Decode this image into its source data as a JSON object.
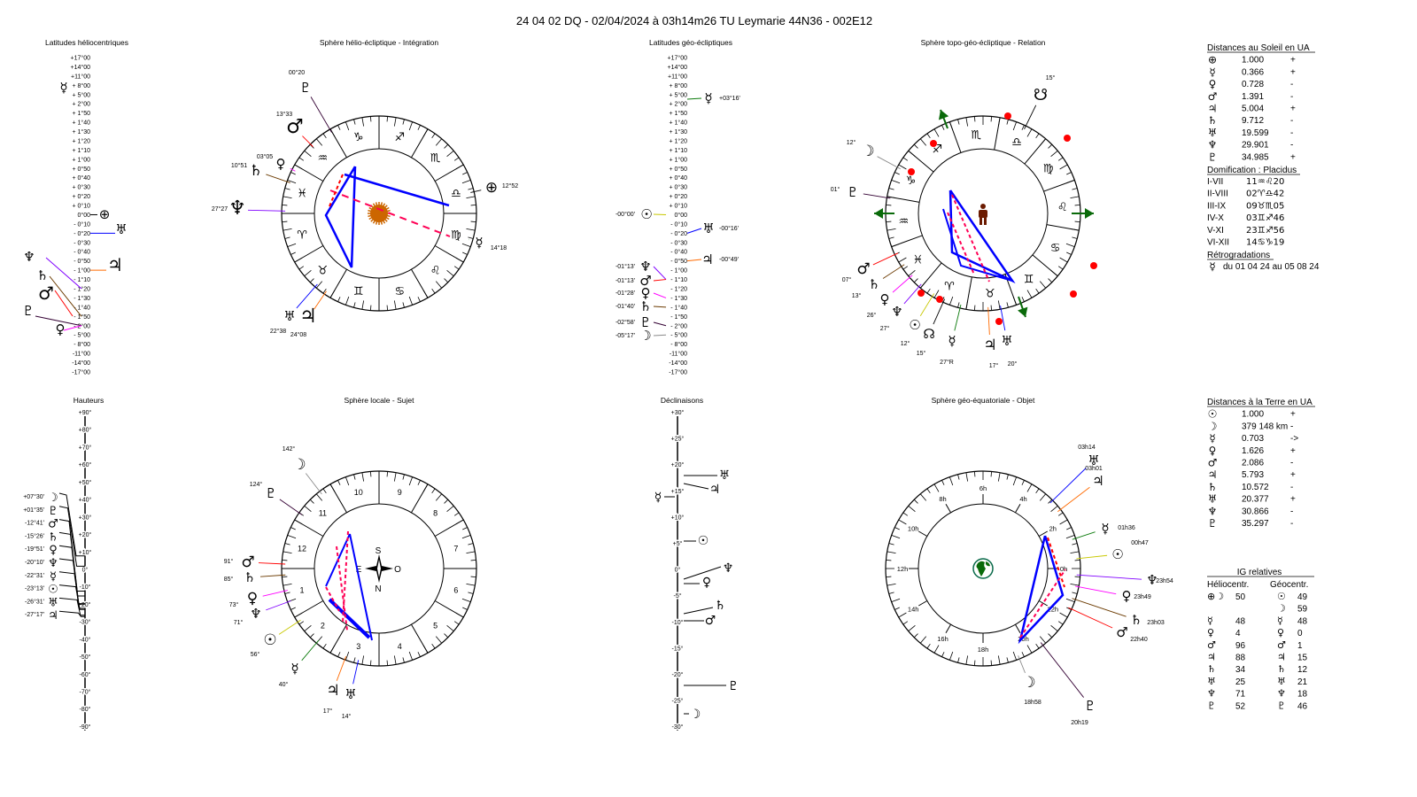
{
  "title": "24 04 02 DQ   -   02/04/2024 à 03h14m26 TU  Leymarie  44N36 - 002E12",
  "planets": {
    "earth": {
      "glyph": "⊕",
      "color": "#000000"
    },
    "sun": {
      "glyph": "☉",
      "color": "#c8c800"
    },
    "moon": {
      "glyph": "☽",
      "color": "#8a8a8a"
    },
    "mercury": {
      "glyph": "☿",
      "color": "#0a7a0a"
    },
    "venus": {
      "glyph": "♀",
      "color": "#ff00ff"
    },
    "mars": {
      "glyph": "♂",
      "color": "#ff0000"
    },
    "jupiter": {
      "glyph": "♃",
      "color": "#ff6a00"
    },
    "saturn": {
      "glyph": "♄",
      "color": "#6b3a00"
    },
    "uranus": {
      "glyph": "♅",
      "color": "#0000ff"
    },
    "neptune": {
      "glyph": "♆",
      "color": "#8000ff"
    },
    "pluto": {
      "glyph": "♇",
      "color": "#330033"
    },
    "north_node": {
      "glyph": "☊",
      "color": "#000000"
    },
    "south_node": {
      "glyph": "☋",
      "color": "#000000"
    }
  },
  "zodiac": [
    {
      "glyph": "♈",
      "color": "#d0105a"
    },
    {
      "glyph": "♉",
      "color": "#808080"
    },
    {
      "glyph": "♊",
      "color": "#0a9a0a"
    },
    {
      "glyph": "♋",
      "color": "#3030ff"
    },
    {
      "glyph": "♌",
      "color": "#d0105a"
    },
    {
      "glyph": "♍",
      "color": "#808080"
    },
    {
      "glyph": "♎",
      "color": "#0a9a0a"
    },
    {
      "glyph": "♏",
      "color": "#3030ff"
    },
    {
      "glyph": "♐",
      "color": "#d0105a"
    },
    {
      "glyph": "♑",
      "color": "#808080"
    },
    {
      "glyph": "♒",
      "color": "#0a9a0a"
    },
    {
      "glyph": "♓",
      "color": "#3030ff"
    }
  ],
  "helio_latitudes": {
    "title": "Latitudes héliocentriques",
    "scale": [
      "+17°00",
      "+14°00",
      "+11°00",
      "+ 8°00",
      "+ 5°00",
      "+ 2°00",
      "+ 1°50",
      "+ 1°40",
      "+ 1°30",
      "+ 1°20",
      "+ 1°10",
      "+ 1°00",
      "+ 0°50",
      "+ 0°40",
      "+ 0°30",
      "+ 0°20",
      "+ 0°10",
      "0°00",
      "- 0°10",
      "- 0°20",
      "- 0°30",
      "- 0°40",
      "- 0°50",
      "- 1°00",
      "- 1°10",
      "- 1°20",
      "- 1°30",
      "- 1°40",
      "- 1°50",
      "- 2°00",
      "- 5°00",
      "- 8°00",
      "-11°00",
      "-14°00",
      "-17°00"
    ],
    "markers": [
      {
        "planet": "mercury"
      },
      {
        "planet": "earth"
      },
      {
        "planet": "uranus"
      },
      {
        "planet": "jupiter"
      },
      {
        "planet": "neptune"
      },
      {
        "planet": "saturn"
      },
      {
        "planet": "mars"
      },
      {
        "planet": "pluto"
      },
      {
        "planet": "venus"
      }
    ]
  },
  "helio_sphere": {
    "title": "Sphère hélio-écliptique - Intégration",
    "positions": [
      {
        "planet": "pluto",
        "label": "00°20"
      },
      {
        "planet": "mars",
        "label": "13°33"
      },
      {
        "planet": "venus",
        "label": "03°05"
      },
      {
        "planet": "saturn",
        "label": "10°51"
      },
      {
        "planet": "neptune",
        "label": "27°27"
      },
      {
        "planet": "earth",
        "label": "12°52"
      },
      {
        "planet": "mercury",
        "label": "14°18"
      },
      {
        "planet": "uranus",
        "label": "22°38"
      },
      {
        "planet": "jupiter",
        "label": "24°08"
      }
    ]
  },
  "geo_latitudes": {
    "title": "Latitudes géo-écliptiques",
    "markers": [
      {
        "planet": "mercury",
        "value": "+03°16'"
      },
      {
        "planet": "sun",
        "value": "-00°00'"
      },
      {
        "planet": "uranus",
        "value": "-00°16'"
      },
      {
        "planet": "jupiter",
        "value": "-00°49'"
      },
      {
        "planet": "neptune",
        "value": "-01°13'"
      },
      {
        "planet": "mars",
        "value": "-01°13'"
      },
      {
        "planet": "venus",
        "value": "-01°28'"
      },
      {
        "planet": "saturn",
        "value": "-01°40'"
      },
      {
        "planet": "pluto",
        "value": "-02°58'"
      },
      {
        "planet": "moon",
        "value": "-05°17'"
      }
    ]
  },
  "topo_sphere": {
    "title": "Sphère topo-géo-écliptique - Relation",
    "positions": [
      {
        "planet": "south_node",
        "label": "15°"
      },
      {
        "planet": "moon",
        "label": "12°"
      },
      {
        "planet": "pluto",
        "label": "01°"
      },
      {
        "planet": "mars",
        "label": "07°"
      },
      {
        "planet": "saturn",
        "label": "13°"
      },
      {
        "planet": "venus",
        "label": "26°"
      },
      {
        "planet": "neptune",
        "label": "27°"
      },
      {
        "planet": "sun",
        "label": "12°"
      },
      {
        "planet": "north_node",
        "label": "15°"
      },
      {
        "planet": "mercury",
        "label": "27°R"
      },
      {
        "planet": "jupiter",
        "label": "17°"
      },
      {
        "planet": "uranus",
        "label": "20°"
      }
    ]
  },
  "hauteurs": {
    "title": "Hauteurs",
    "scale": [
      "+90°",
      "+80°",
      "+70°",
      "+60°",
      "+50°",
      "+40°",
      "+30°",
      "+20°",
      "+10°",
      "0°",
      "-10°",
      "-20°",
      "-30°",
      "-40°",
      "-50°",
      "-60°",
      "-70°",
      "-80°",
      "-90°"
    ],
    "markers": [
      {
        "planet": "moon",
        "value": "+07°30'"
      },
      {
        "planet": "pluto",
        "value": "+01°35'"
      },
      {
        "planet": "mars",
        "value": "-12°41'"
      },
      {
        "planet": "saturn",
        "value": "-15°26'"
      },
      {
        "planet": "venus",
        "value": "-19°51'"
      },
      {
        "planet": "neptune",
        "value": "-20°10'"
      },
      {
        "planet": "mercury",
        "value": "-22°31'"
      },
      {
        "planet": "sun",
        "value": "-23°13'"
      },
      {
        "planet": "uranus",
        "value": "-26°31'"
      },
      {
        "planet": "jupiter",
        "value": "-27°17'"
      }
    ]
  },
  "local_sphere": {
    "title": "Sphère locale - Sujet",
    "houses": [
      "1",
      "2",
      "3",
      "4",
      "5",
      "6",
      "7",
      "8",
      "9",
      "10",
      "11",
      "12"
    ],
    "compass": {
      "south": "S",
      "north": "N",
      "east": "E",
      "west": "O"
    },
    "positions": [
      {
        "planet": "moon",
        "label": "142°"
      },
      {
        "planet": "pluto",
        "label": "124°"
      },
      {
        "planet": "mars",
        "label": "91°"
      },
      {
        "planet": "saturn",
        "label": "85°"
      },
      {
        "planet": "venus",
        "label": "73°"
      },
      {
        "planet": "neptune",
        "label": "71°"
      },
      {
        "planet": "sun",
        "label": "56°"
      },
      {
        "planet": "mercury",
        "label": "40°"
      },
      {
        "planet": "jupiter",
        "label": "17°"
      },
      {
        "planet": "uranus",
        "label": "14°"
      }
    ]
  },
  "declinaisons": {
    "title": "Déclinaisons",
    "scale": [
      "+30°",
      "+25°",
      "+20°",
      "+15°",
      "+10°",
      "+5°",
      "0°",
      "-5°",
      "-10°",
      "-15°",
      "-20°",
      "-25°",
      "-30°"
    ],
    "markers": [
      {
        "planet": "uranus"
      },
      {
        "planet": "jupiter"
      },
      {
        "planet": "mercury"
      },
      {
        "planet": "sun"
      },
      {
        "planet": "neptune"
      },
      {
        "planet": "venus"
      },
      {
        "planet": "saturn"
      },
      {
        "planet": "mars"
      },
      {
        "planet": "pluto"
      },
      {
        "planet": "moon"
      }
    ]
  },
  "equatorial_sphere": {
    "title": "Sphère géo-équatoriale - Objet",
    "hours": [
      "0h",
      "2h",
      "4h",
      "6h",
      "8h",
      "10h",
      "12h",
      "14h",
      "16h",
      "18h",
      "20h",
      "22h"
    ],
    "positions": [
      {
        "planet": "uranus",
        "label": "03h14"
      },
      {
        "planet": "jupiter",
        "label": "03h01"
      },
      {
        "planet": "mercury",
        "label": "01h36"
      },
      {
        "planet": "sun",
        "label": "00h47"
      },
      {
        "planet": "neptune",
        "label": "23h54"
      },
      {
        "planet": "venus",
        "label": "23h49"
      },
      {
        "planet": "saturn",
        "label": "23h03"
      },
      {
        "planet": "mars",
        "label": "22h40"
      },
      {
        "planet": "moon",
        "label": "18h58"
      },
      {
        "planet": "pluto",
        "label": "20h19"
      }
    ]
  },
  "sun_distances": {
    "title": "Distances au Soleil en UA",
    "rows": [
      {
        "planet": "earth",
        "value": "1.000",
        "trend": "+"
      },
      {
        "planet": "mercury",
        "value": "0.366",
        "trend": "+"
      },
      {
        "planet": "venus",
        "value": "0.728",
        "trend": "-"
      },
      {
        "planet": "mars",
        "value": "1.391",
        "trend": "-"
      },
      {
        "planet": "jupiter",
        "value": "5.004",
        "trend": "+"
      },
      {
        "planet": "saturn",
        "value": "9.712",
        "trend": "-"
      },
      {
        "planet": "uranus",
        "value": "19.599",
        "trend": "-"
      },
      {
        "planet": "neptune",
        "value": "29.901",
        "trend": "-"
      },
      {
        "planet": "pluto",
        "value": "34.985",
        "trend": "+"
      }
    ]
  },
  "domification": {
    "title": "Domification : Placidus",
    "rows": [
      {
        "houses": "I-VII",
        "value": "11♒♌20"
      },
      {
        "houses": "II-VIII",
        "value": "02♈♎42"
      },
      {
        "houses": "III-IX",
        "value": "09♉♏05"
      },
      {
        "houses": "IV-X",
        "value": "03♊♐46"
      },
      {
        "houses": "V-XI",
        "value": "23♊♐56"
      },
      {
        "houses": "VI-XII",
        "value": "14♋♑19"
      }
    ]
  },
  "retrogradations": {
    "title": "Rétrogradations",
    "rows": [
      {
        "planet": "mercury",
        "text": "du 01 04 24 au 05 08 24"
      }
    ]
  },
  "earth_distances": {
    "title": "Distances à la Terre en UA",
    "rows": [
      {
        "planet": "sun",
        "value": "1.000",
        "trend": "+"
      },
      {
        "planet": "moon",
        "value": "379 148 km",
        "trend": "-"
      },
      {
        "planet": "mercury",
        "value": "0.703",
        "trend": "->"
      },
      {
        "planet": "venus",
        "value": "1.626",
        "trend": "+"
      },
      {
        "planet": "mars",
        "value": "2.086",
        "trend": "-"
      },
      {
        "planet": "jupiter",
        "value": "5.793",
        "trend": "+"
      },
      {
        "planet": "saturn",
        "value": "10.572",
        "trend": "-"
      },
      {
        "planet": "uranus",
        "value": "20.377",
        "trend": "+"
      },
      {
        "planet": "neptune",
        "value": "30.866",
        "trend": "-"
      },
      {
        "planet": "pluto",
        "value": "35.297",
        "trend": "-"
      }
    ]
  },
  "ig_relatives": {
    "title": "IG relatives",
    "helio_header": "Héliocentr.",
    "geo_header": "Géocentr.",
    "helio": [
      {
        "glyphs": "⊕☽",
        "value": "50"
      },
      {
        "glyphs": "",
        "value": ""
      },
      {
        "glyphs": "☿",
        "value": "48"
      },
      {
        "glyphs": "♀",
        "value": "4"
      },
      {
        "glyphs": "♂",
        "value": "96"
      },
      {
        "glyphs": "♃",
        "value": "88"
      },
      {
        "glyphs": "♄",
        "value": "34"
      },
      {
        "glyphs": "♅",
        "value": "25"
      },
      {
        "glyphs": "♆",
        "value": "71"
      },
      {
        "glyphs": "♇",
        "value": "52"
      }
    ],
    "geo": [
      {
        "glyphs": "☉",
        "value": "49"
      },
      {
        "glyphs": "☽",
        "value": "59"
      },
      {
        "glyphs": "☿",
        "value": "48"
      },
      {
        "glyphs": "♀",
        "value": "0"
      },
      {
        "glyphs": "♂",
        "value": "1"
      },
      {
        "glyphs": "♃",
        "value": "15"
      },
      {
        "glyphs": "♄",
        "value": "12"
      },
      {
        "glyphs": "♅",
        "value": "21"
      },
      {
        "glyphs": "♆",
        "value": "18"
      },
      {
        "glyphs": "♇",
        "value": "46"
      }
    ]
  }
}
